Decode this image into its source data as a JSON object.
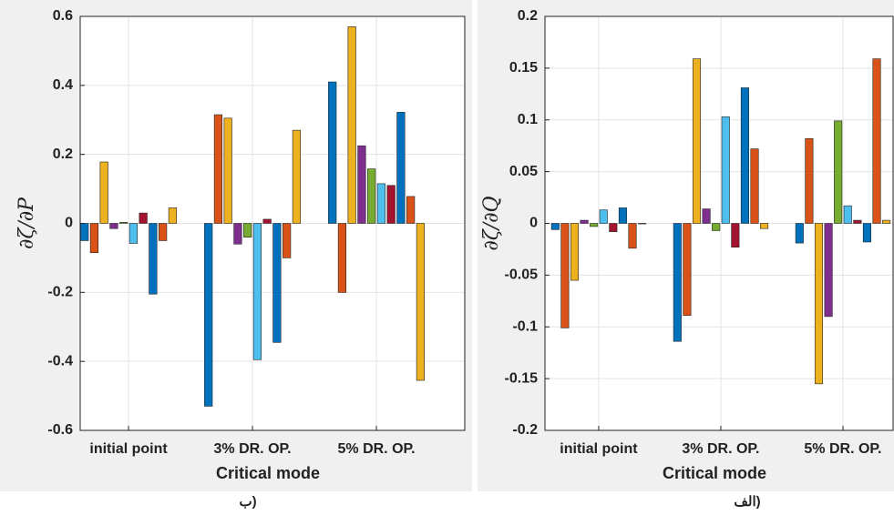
{
  "chart_data": [
    {
      "type": "bar",
      "ylabel": "∂ζ/∂P",
      "xlabel": "Critical mode",
      "caption": "ب)",
      "categories": [
        "initial point",
        "3% DR. OP.",
        "5% DR. OP."
      ],
      "ylim": [
        -0.6,
        0.6
      ],
      "yticks": [
        -0.6,
        -0.4,
        -0.2,
        0,
        0.2,
        0.4,
        0.6
      ],
      "grid": true,
      "series": [
        {
          "color": "#0072bd",
          "values": [
            -0.05,
            -0.53,
            0.41
          ]
        },
        {
          "color": "#d95319",
          "values": [
            -0.085,
            0.315,
            -0.2
          ]
        },
        {
          "color": "#edb120",
          "values": [
            0.178,
            0.305,
            0.57
          ]
        },
        {
          "color": "#7e2f8e",
          "values": [
            -0.015,
            -0.06,
            0.225
          ]
        },
        {
          "color": "#77ac30",
          "values": [
            0.003,
            -0.04,
            0.158
          ]
        },
        {
          "color": "#4dbeee",
          "values": [
            -0.058,
            -0.395,
            0.115
          ]
        },
        {
          "color": "#a2142f",
          "values": [
            0.03,
            0.012,
            0.11
          ]
        },
        {
          "color": "#0072bd",
          "values": [
            -0.205,
            -0.345,
            0.322
          ]
        },
        {
          "color": "#d95319",
          "values": [
            -0.05,
            -0.1,
            0.078
          ]
        },
        {
          "color": "#edb120",
          "values": [
            0.045,
            0.27,
            -0.455
          ]
        }
      ]
    },
    {
      "type": "bar",
      "ylabel": "∂ζ/∂Q",
      "xlabel": "Critical mode",
      "caption": "الف)",
      "categories": [
        "initial point",
        "3% DR. OP.",
        "5% DR. OP."
      ],
      "ylim": [
        -0.2,
        0.2
      ],
      "yticks": [
        -0.2,
        -0.15,
        -0.1,
        -0.05,
        0,
        0.05,
        0.1,
        0.15,
        0.2
      ],
      "grid": true,
      "series": [
        {
          "color": "#0072bd",
          "values": [
            -0.006,
            -0.114,
            -0.019
          ]
        },
        {
          "color": "#d95319",
          "values": [
            -0.101,
            -0.089,
            0.082
          ]
        },
        {
          "color": "#edb120",
          "values": [
            -0.055,
            0.159,
            -0.155
          ]
        },
        {
          "color": "#7e2f8e",
          "values": [
            0.003,
            0.014,
            -0.09
          ]
        },
        {
          "color": "#77ac30",
          "values": [
            -0.003,
            -0.007,
            0.099
          ]
        },
        {
          "color": "#4dbeee",
          "values": [
            0.013,
            0.103,
            0.017
          ]
        },
        {
          "color": "#a2142f",
          "values": [
            -0.008,
            -0.023,
            0.003
          ]
        },
        {
          "color": "#0072bd",
          "values": [
            0.015,
            0.131,
            -0.018
          ]
        },
        {
          "color": "#d95319",
          "values": [
            -0.024,
            0.072,
            0.159
          ]
        },
        {
          "color": "#edb120",
          "values": [
            0,
            -0.005,
            0.003
          ]
        }
      ]
    }
  ]
}
